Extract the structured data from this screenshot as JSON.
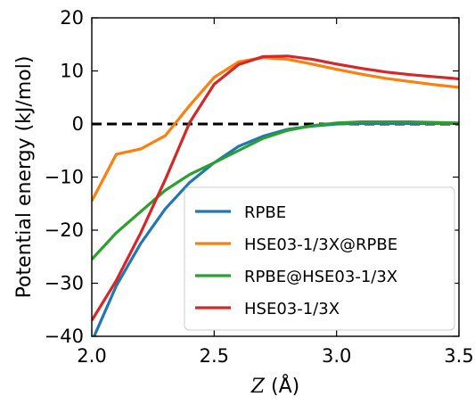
{
  "chart_data": {
    "type": "line",
    "xlabel": "Z (Å)",
    "xlabel_symbol": "Z",
    "xlabel_unit": "(Å)",
    "ylabel": "Potential energy (kJ/mol)",
    "xlim": [
      2.0,
      3.5
    ],
    "ylim": [
      -40,
      20
    ],
    "xticks": [
      2.0,
      2.5,
      3.0,
      3.5
    ],
    "xtick_labels": [
      "2.0",
      "2.5",
      "3.0",
      "3.5"
    ],
    "yticks": [
      -40,
      -30,
      -20,
      -10,
      0,
      10,
      20
    ],
    "ytick_labels": [
      "−40",
      "−30",
      "−20",
      "−10",
      "0",
      "10",
      "20"
    ],
    "grid": false,
    "legend_position": "lower-right",
    "reference_line": {
      "y": 0,
      "style": "dashed",
      "color": "#000000"
    },
    "series": [
      {
        "name": "RPBE",
        "color": "#1f77b4",
        "x": [
          2.0,
          2.1,
          2.2,
          2.3,
          2.4,
          2.5,
          2.6,
          2.7,
          2.8,
          2.9,
          3.0,
          3.1,
          3.2,
          3.3,
          3.4,
          3.5
        ],
        "y": [
          -41,
          -30.5,
          -22.5,
          -16,
          -11,
          -7.3,
          -4.2,
          -2.3,
          -1.0,
          -0.4,
          0.0,
          0.1,
          0.1,
          0.1,
          0.1,
          0.1
        ]
      },
      {
        "name": "HSE03-1/3X@RPBE",
        "color": "#ff7f0e",
        "x": [
          2.0,
          2.1,
          2.2,
          2.3,
          2.4,
          2.5,
          2.6,
          2.7,
          2.8,
          2.9,
          3.0,
          3.1,
          3.2,
          3.3,
          3.4,
          3.5
        ],
        "y": [
          -14.5,
          -5.7,
          -4.7,
          -2.2,
          3.5,
          8.8,
          11.7,
          12.5,
          12.2,
          11.3,
          10.3,
          9.4,
          8.6,
          8.0,
          7.4,
          6.9
        ]
      },
      {
        "name": "RPBE@HSE03-1/3X",
        "color": "#2ca02c",
        "x": [
          2.0,
          2.1,
          2.2,
          2.3,
          2.4,
          2.5,
          2.6,
          2.7,
          2.8,
          2.9,
          3.0,
          3.1,
          3.2,
          3.3,
          3.4,
          3.5
        ],
        "y": [
          -25.5,
          -20.5,
          -16.5,
          -12.5,
          -9.5,
          -7.3,
          -5.0,
          -2.7,
          -1.2,
          -0.3,
          0.2,
          0.4,
          0.4,
          0.4,
          0.3,
          0.2
        ]
      },
      {
        "name": "HSE03-1/3X",
        "color": "#d62728",
        "x": [
          2.0,
          2.1,
          2.2,
          2.3,
          2.4,
          2.5,
          2.6,
          2.7,
          2.8,
          2.9,
          3.0,
          3.1,
          3.2,
          3.3,
          3.4,
          3.5
        ],
        "y": [
          -37,
          -29.5,
          -20.5,
          -10.5,
          0.3,
          7.5,
          11.2,
          12.7,
          12.8,
          12.2,
          11.3,
          10.5,
          9.8,
          9.3,
          8.9,
          8.5
        ]
      }
    ]
  }
}
